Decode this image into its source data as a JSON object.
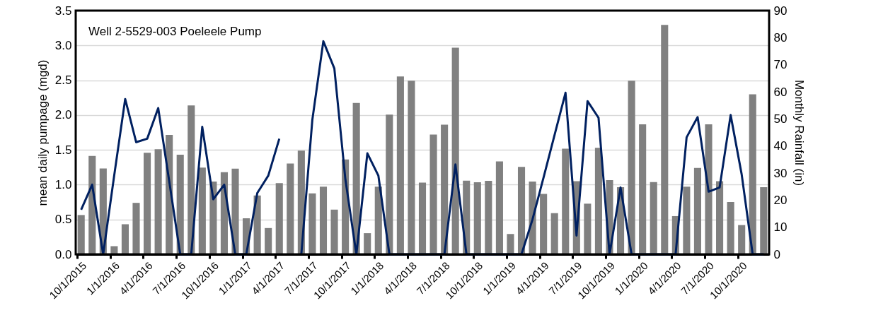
{
  "chart_data": {
    "type": "bar",
    "annotations": [
      "Well 2-5529-003 Poeleele Pump"
    ],
    "ylabel": "mean daily pumpage (mgd)",
    "y2label": "Monthly Rainfall (in)",
    "categories": [
      "10/1/2015",
      null,
      null,
      "1/1/2016",
      null,
      null,
      "4/1/2016",
      null,
      null,
      "7/1/2016",
      null,
      null,
      "10/1/2016",
      null,
      null,
      "1/1/2017",
      null,
      null,
      "4/1/2017",
      null,
      null,
      "7/1/2017",
      null,
      null,
      "10/1/2017",
      null,
      null,
      "1/1/2018",
      null,
      null,
      "4/1/2018",
      null,
      null,
      "7/1/2018",
      null,
      null,
      "10/1/2018",
      null,
      null,
      "1/1/2019",
      null,
      null,
      "4/1/2019",
      null,
      null,
      "7/1/2019",
      null,
      null,
      "10/1/2019",
      null,
      null,
      "1/1/2020",
      null,
      null,
      "4/1/2020",
      null,
      null,
      "7/1/2020",
      null,
      null,
      "10/1/2020",
      null,
      null
    ],
    "series": [
      {
        "axis": "y2",
        "color": "#808080",
        "values": [
          14.5,
          36.3,
          31.7,
          3.0,
          11.1,
          19.0,
          37.5,
          38.8,
          44.1,
          36.8,
          55.0,
          32.0,
          26.9,
          30.3,
          31.6,
          13.3,
          21.7,
          9.7,
          26.3,
          33.5,
          38.3,
          22.5,
          25.0,
          16.5,
          35.0,
          55.9,
          7.8,
          25.0,
          51.6,
          65.7,
          64.1,
          26.5,
          44.2,
          47.9,
          76.3,
          27.2,
          26.6,
          27.1,
          34.3,
          7.5,
          32.3,
          26.9,
          22.3,
          15.2,
          39.0,
          27.0,
          18.7,
          39.3,
          27.4,
          24.8,
          64.1,
          48.0,
          26.7,
          84.7,
          14.1,
          25.0,
          31.9,
          48.0,
          27.0,
          19.3,
          10.8,
          59.1,
          24.8
        ]
      },
      {
        "type": "line",
        "axis": "y",
        "color": "#002060",
        "values": [
          0.64,
          1.0,
          0,
          1.13,
          2.23,
          1.61,
          1.66,
          2.1,
          1.05,
          0,
          0,
          1.83,
          0.79,
          1.0,
          0,
          0,
          0.88,
          1.13,
          1.66,
          null,
          0,
          1.93,
          3.06,
          2.67,
          1.08,
          0,
          1.45,
          1.13,
          0,
          0,
          0,
          0,
          0,
          0,
          1.29,
          0,
          0,
          0,
          0,
          0,
          0,
          0.5,
          1.1,
          1.71,
          2.32,
          0.27,
          2.2,
          1.96,
          0,
          0.96,
          0,
          0,
          0,
          0,
          0,
          1.68,
          1.97,
          0.9,
          0.96,
          2.0,
          1.15,
          0,
          0
        ]
      }
    ],
    "ylim": [
      0,
      3.5
    ],
    "yticks": [
      {
        "value": 0,
        "label": "0.0"
      },
      0.5,
      {
        "value": 1,
        "label": "1.0"
      },
      1.5,
      {
        "value": 2,
        "label": "2.0"
      },
      2.5,
      {
        "value": 3,
        "label": "3.0"
      },
      3.5
    ],
    "y2lim": [
      0,
      90
    ],
    "y2ticks": [
      0,
      10,
      20,
      30,
      40,
      50,
      60,
      70,
      80,
      90
    ],
    "grid": "y",
    "line_style": "solid",
    "marker": "none"
  }
}
